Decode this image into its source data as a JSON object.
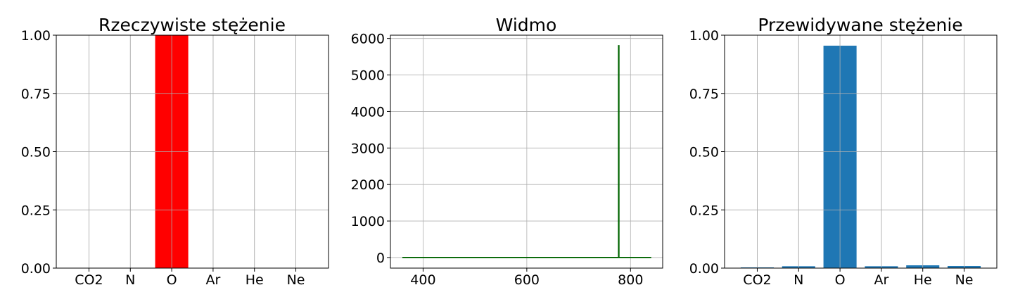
{
  "chart_data": [
    {
      "type": "bar",
      "title": "Rzeczywiste stężenie",
      "categories": [
        "CO2",
        "N",
        "O",
        "Ar",
        "He",
        "Ne"
      ],
      "values": [
        0,
        0,
        1.0,
        0,
        0,
        0
      ],
      "color": "#ff0000",
      "ylim": [
        0,
        1.0
      ],
      "yticks": [
        "0.00",
        "0.25",
        "0.50",
        "0.75",
        "1.00"
      ],
      "grid": true
    },
    {
      "type": "line",
      "title": "Widmo",
      "x": [
        360,
        777,
        777,
        777.6,
        777.6,
        840
      ],
      "y": [
        0,
        0,
        5800,
        5800,
        0,
        0
      ],
      "color": "#006400",
      "xlim": [
        337,
        862
      ],
      "ylim": [
        -290,
        6090
      ],
      "xticks": [
        400,
        600,
        800
      ],
      "yticks": [
        0,
        1000,
        2000,
        3000,
        4000,
        5000,
        6000
      ],
      "grid": true
    },
    {
      "type": "bar",
      "title": "Przewidywane stężenie",
      "categories": [
        "CO2",
        "N",
        "O",
        "Ar",
        "He",
        "Ne"
      ],
      "values": [
        0.003,
        0.008,
        0.955,
        0.008,
        0.012,
        0.009
      ],
      "color": "#1f77b4",
      "ylim": [
        0,
        1.0
      ],
      "yticks": [
        "0.00",
        "0.25",
        "0.50",
        "0.75",
        "1.00"
      ],
      "grid": true
    }
  ]
}
